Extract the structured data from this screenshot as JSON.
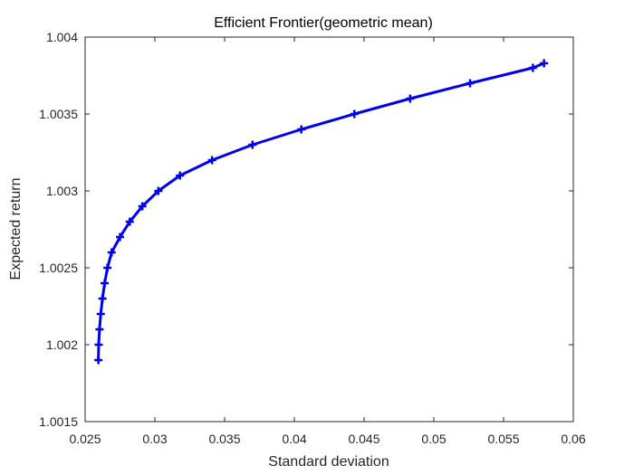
{
  "chart_data": {
    "type": "line",
    "title": "Efficient Frontier(geometric mean)",
    "xlabel": "Standard deviation",
    "ylabel": "Expected return",
    "xlim": [
      0.025,
      0.06
    ],
    "ylim": [
      1.0015,
      1.004
    ],
    "xticks": [
      "0.025",
      "0.03",
      "0.035",
      "0.04",
      "0.045",
      "0.05",
      "0.055",
      "0.06"
    ],
    "yticks": [
      "1.0015",
      "1.002",
      "1.0025",
      "1.003",
      "1.0035",
      "1.004"
    ],
    "grid": false,
    "marker": "+",
    "colors": {
      "series": "#0000ee",
      "axis": "#262626"
    },
    "series": [
      {
        "x": [
          0.02595,
          0.02597,
          0.02603,
          0.02612,
          0.02624,
          0.0264,
          0.0266,
          0.0269,
          0.0275,
          0.0282,
          0.0291,
          0.03025,
          0.0318,
          0.0341,
          0.037,
          0.0405,
          0.0443,
          0.0483,
          0.0526,
          0.0571,
          0.0579
        ],
        "y": [
          1.0019,
          1.002,
          1.0021,
          1.0022,
          1.0023,
          1.0024,
          1.0025,
          1.0026,
          1.0027,
          1.0028,
          1.0029,
          1.003,
          1.0031,
          1.0032,
          1.0033,
          1.0034,
          1.0035,
          1.0036,
          1.0037,
          1.0038,
          1.00383
        ]
      }
    ]
  }
}
